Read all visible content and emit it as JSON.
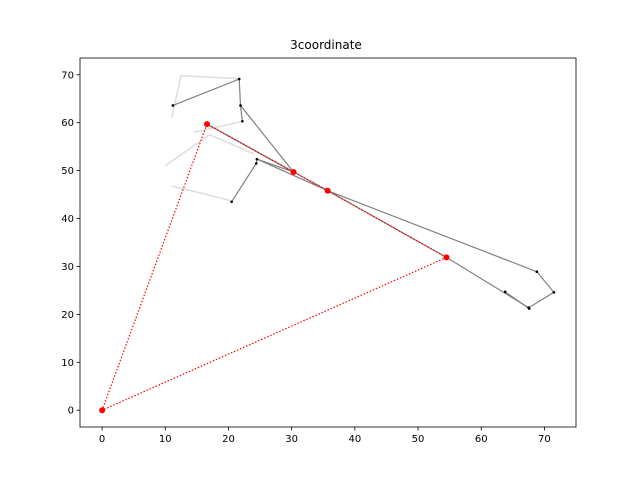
{
  "chart_data": {
    "type": "line",
    "title": "3coordinate",
    "xlabel": "",
    "ylabel": "",
    "xlim": [
      -3.5,
      75
    ],
    "ylim": [
      -3.5,
      73.5
    ],
    "xticks": [
      0,
      10,
      20,
      30,
      40,
      50,
      60,
      70
    ],
    "yticks": [
      0,
      10,
      20,
      30,
      40,
      50,
      60,
      70
    ],
    "grid": false,
    "colors": {
      "highlight": "#ff0000",
      "dark_lines": "#808080",
      "faded_lines": "#dddddd",
      "points": "#000000"
    },
    "faded_paths": [
      [
        [
          11.0,
          61.0
        ],
        [
          12.5,
          69.8
        ],
        [
          21.5,
          69.2
        ]
      ],
      [
        [
          14.5,
          58.0
        ],
        [
          18.0,
          59.0
        ],
        [
          22.0,
          60.2
        ]
      ],
      [
        [
          10.0,
          51.0
        ],
        [
          17.0,
          57.5
        ],
        [
          24.0,
          53.5
        ]
      ],
      [
        [
          11.0,
          46.8
        ],
        [
          16.0,
          45.2
        ],
        [
          20.5,
          43.7
        ]
      ]
    ],
    "dark_paths": [
      [
        [
          11.2,
          63.6
        ],
        [
          21.7,
          69.1
        ],
        [
          21.9,
          63.6
        ],
        [
          30.3,
          49.7
        ]
      ],
      [
        [
          21.9,
          63.6
        ],
        [
          22.2,
          60.3
        ]
      ],
      [
        [
          20.5,
          43.5
        ],
        [
          24.4,
          51.5
        ],
        [
          24.5,
          52.4
        ],
        [
          30.3,
          49.7
        ]
      ],
      [
        [
          30.3,
          49.7
        ],
        [
          16.6,
          59.7
        ]
      ],
      [
        [
          24.5,
          52.4
        ],
        [
          35.7,
          45.8
        ],
        [
          54.5,
          31.9
        ],
        [
          67.5,
          21.4
        ],
        [
          71.5,
          24.6
        ],
        [
          68.8,
          28.9
        ],
        [
          35.7,
          45.8
        ]
      ],
      [
        [
          63.8,
          24.7
        ],
        [
          67.6,
          21.2
        ]
      ],
      [
        [
          16.6,
          59.7
        ],
        [
          35.7,
          45.8
        ]
      ]
    ],
    "small_points": [
      [
        11.2,
        63.6
      ],
      [
        21.7,
        69.1
      ],
      [
        21.9,
        63.6
      ],
      [
        22.2,
        60.3
      ],
      [
        20.5,
        43.5
      ],
      [
        24.4,
        51.5
      ],
      [
        24.5,
        52.4
      ],
      [
        63.8,
        24.7
      ],
      [
        67.5,
        21.4
      ],
      [
        67.6,
        21.2
      ],
      [
        71.5,
        24.6
      ],
      [
        68.8,
        28.9
      ]
    ],
    "highlight_points": [
      [
        0,
        0
      ],
      [
        16.6,
        59.7
      ],
      [
        30.3,
        49.7
      ],
      [
        35.7,
        45.8
      ],
      [
        54.5,
        31.9
      ]
    ],
    "highlight_path": [
      [
        54.5,
        31.9
      ],
      [
        0,
        0
      ],
      [
        16.6,
        59.7
      ],
      [
        30.3,
        49.7
      ],
      [
        35.7,
        45.8
      ],
      [
        54.5,
        31.9
      ]
    ]
  }
}
